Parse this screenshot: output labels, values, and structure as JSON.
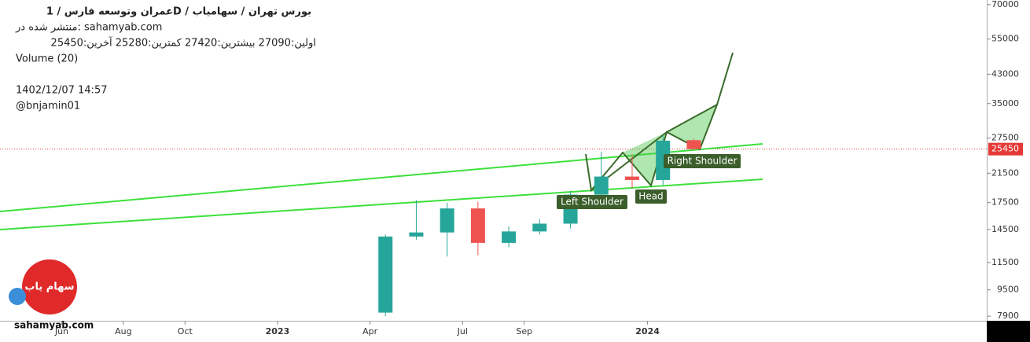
{
  "header": {
    "title": "عمران وتوسعه فارس  /  1D  /  بورس تهران / سهامیاب",
    "published": "منتشر شده در: sahamyab.com",
    "ohlc": "اولین:27090  بیشترین:27420  کمترین:25280  آخرین:25450",
    "volume": "Volume (20)",
    "datetime": "1402/12/07 14:57",
    "author": "@bnjamin01"
  },
  "watermark": "sahamyab.com",
  "logo": "سهام یاب",
  "chart_data": {
    "type": "candlestick",
    "x": [
      "2023-04",
      "2023-05",
      "2023-06",
      "2023-07",
      "2023-08",
      "2023-09",
      "2023-10",
      "2023-11",
      "2023-12",
      "2024-01",
      "2024-02"
    ],
    "open": [
      8100,
      13800,
      14200,
      16800,
      13200,
      14300,
      15100,
      18500,
      21000,
      20500,
      27090
    ],
    "high": [
      14000,
      17800,
      17500,
      17600,
      14800,
      15600,
      19000,
      25000,
      24500,
      28000,
      27420
    ],
    "low": [
      7900,
      13500,
      12000,
      12100,
      12800,
      14000,
      14600,
      18200,
      19300,
      19800,
      25280
    ],
    "close": [
      13800,
      14200,
      16800,
      13200,
      14300,
      15100,
      18500,
      21000,
      20500,
      27000,
      25450
    ],
    "up_color": "#26a69a",
    "down_color": "#ef5350",
    "last_price": 25450,
    "xlim": [
      "2022-04",
      "2024-12"
    ],
    "xticks": [
      {
        "value": "2022-06",
        "label": "Jun"
      },
      {
        "value": "2022-08",
        "label": "Aug"
      },
      {
        "value": "2022-10",
        "label": "Oct"
      },
      {
        "value": "2023-01",
        "label": "2023"
      },
      {
        "value": "2023-04",
        "label": "Apr"
      },
      {
        "value": "2023-07",
        "label": "Jul"
      },
      {
        "value": "2023-09",
        "label": "Sep"
      },
      {
        "value": "2024-01",
        "label": "2024"
      }
    ],
    "ylim": [
      7650,
      72300
    ],
    "log_scale": true,
    "yticks": [
      7900,
      9500,
      11500,
      14500,
      17500,
      21500,
      27500,
      35000,
      43000,
      55000,
      70000
    ],
    "annotations": [
      "Left Shoulder",
      "Head",
      "Right Shoulder"
    ]
  }
}
